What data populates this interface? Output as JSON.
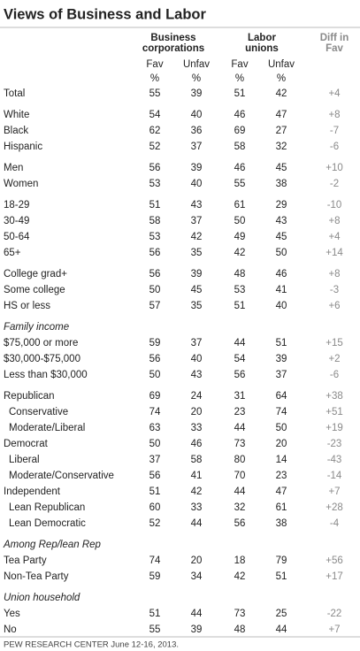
{
  "title": "Views of Business and Labor",
  "header": {
    "business": [
      "Business",
      "corporations"
    ],
    "labor": [
      "Labor",
      "unions"
    ],
    "diff": [
      "Diff in",
      "Fav"
    ],
    "columns": [
      "Fav",
      "Unfav",
      "Fav",
      "Unfav"
    ],
    "units": [
      "%",
      "%",
      "%",
      "%"
    ]
  },
  "groups": [
    {
      "rows": [
        {
          "label": "Total",
          "cells": [
            "55",
            "39",
            "51",
            "42",
            "+4"
          ]
        }
      ]
    },
    {
      "rows": [
        {
          "label": "White",
          "cells": [
            "54",
            "40",
            "46",
            "47",
            "+8"
          ]
        },
        {
          "label": "Black",
          "cells": [
            "62",
            "36",
            "69",
            "27",
            "-7"
          ]
        },
        {
          "label": "Hispanic",
          "cells": [
            "52",
            "37",
            "58",
            "32",
            "-6"
          ]
        }
      ]
    },
    {
      "rows": [
        {
          "label": "Men",
          "cells": [
            "56",
            "39",
            "46",
            "45",
            "+10"
          ]
        },
        {
          "label": "Women",
          "cells": [
            "53",
            "40",
            "55",
            "38",
            "-2"
          ]
        }
      ]
    },
    {
      "rows": [
        {
          "label": "18-29",
          "cells": [
            "51",
            "43",
            "61",
            "29",
            "-10"
          ]
        },
        {
          "label": "30-49",
          "cells": [
            "58",
            "37",
            "50",
            "43",
            "+8"
          ]
        },
        {
          "label": "50-64",
          "cells": [
            "53",
            "42",
            "49",
            "45",
            "+4"
          ]
        },
        {
          "label": "65+",
          "cells": [
            "56",
            "35",
            "42",
            "50",
            "+14"
          ]
        }
      ]
    },
    {
      "rows": [
        {
          "label": "College grad+",
          "cells": [
            "56",
            "39",
            "48",
            "46",
            "+8"
          ]
        },
        {
          "label": "Some college",
          "cells": [
            "50",
            "45",
            "53",
            "41",
            "-3"
          ]
        },
        {
          "label": "HS or less",
          "cells": [
            "57",
            "35",
            "51",
            "40",
            "+6"
          ]
        }
      ]
    },
    {
      "heading": "Family income",
      "rows": [
        {
          "label": "$75,000 or more",
          "cells": [
            "59",
            "37",
            "44",
            "51",
            "+15"
          ]
        },
        {
          "label": "$30,000-$75,000",
          "cells": [
            "56",
            "40",
            "54",
            "39",
            "+2"
          ]
        },
        {
          "label": "Less than $30,000",
          "cells": [
            "50",
            "43",
            "56",
            "37",
            "-6"
          ]
        }
      ]
    },
    {
      "rows": [
        {
          "label": "Republican",
          "cells": [
            "69",
            "24",
            "31",
            "64",
            "+38"
          ]
        },
        {
          "label": "Conservative",
          "cells": [
            "74",
            "20",
            "23",
            "74",
            "+51"
          ]
        },
        {
          "label": "Moderate/Liberal",
          "cells": [
            "63",
            "33",
            "44",
            "50",
            "+19"
          ]
        },
        {
          "label": "Democrat",
          "cells": [
            "50",
            "46",
            "73",
            "20",
            "-23"
          ]
        },
        {
          "label": "Liberal",
          "cells": [
            "37",
            "58",
            "80",
            "14",
            "-43"
          ]
        },
        {
          "label": "Moderate/Conservative",
          "cells": [
            "56",
            "41",
            "70",
            "23",
            "-14"
          ]
        },
        {
          "label": "Independent",
          "cells": [
            "51",
            "42",
            "44",
            "47",
            "+7"
          ]
        },
        {
          "label": "Lean Republican",
          "cells": [
            "60",
            "33",
            "32",
            "61",
            "+28"
          ]
        },
        {
          "label": "Lean Democratic",
          "cells": [
            "52",
            "44",
            "56",
            "38",
            "-4"
          ]
        }
      ]
    },
    {
      "heading": "Among Rep/lean Rep",
      "rows": [
        {
          "label": "Tea Party",
          "cells": [
            "74",
            "20",
            "18",
            "79",
            "+56"
          ]
        },
        {
          "label": "Non-Tea Party",
          "cells": [
            "59",
            "34",
            "42",
            "51",
            "+17"
          ]
        }
      ]
    },
    {
      "heading": "Union household",
      "rows": [
        {
          "label": "Yes",
          "cells": [
            "51",
            "44",
            "73",
            "25",
            "-22"
          ]
        },
        {
          "label": "No",
          "cells": [
            "55",
            "39",
            "48",
            "44",
            "+7"
          ]
        }
      ]
    }
  ],
  "footer": "PEW RESEARCH CENTER June 12-16, 2013."
}
